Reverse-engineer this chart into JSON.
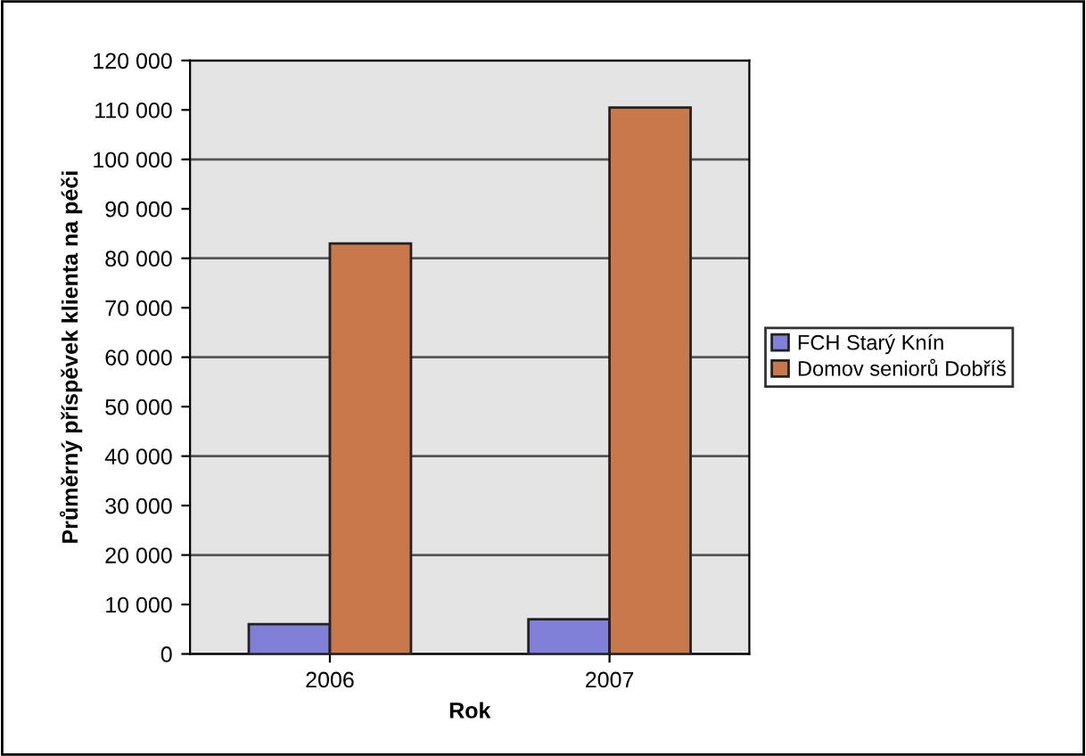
{
  "chart_data": {
    "type": "bar",
    "xlabel": "Rok",
    "ylabel": "Průměrný příspěvek klienta na péči",
    "categories": [
      "2006",
      "2007"
    ],
    "series": [
      {
        "name": "FCH Starý Knín",
        "color": "#8080d8",
        "values": [
          6000,
          7000
        ]
      },
      {
        "name": "Domov seniorů Dobříš",
        "color": "#c8784a",
        "values": [
          83000,
          110500
        ]
      }
    ],
    "ylim": [
      0,
      120000
    ],
    "yticks": [
      {
        "value": 0,
        "label": "0"
      },
      {
        "value": 10000,
        "label": "10 000"
      },
      {
        "value": 20000,
        "label": "20 000"
      },
      {
        "value": 30000,
        "label": "30 000"
      },
      {
        "value": 40000,
        "label": "40 000"
      },
      {
        "value": 50000,
        "label": "50 000"
      },
      {
        "value": 60000,
        "label": "60 000"
      },
      {
        "value": 70000,
        "label": "70 000"
      },
      {
        "value": 80000,
        "label": "80 000"
      },
      {
        "value": 90000,
        "label": "90 000"
      },
      {
        "value": 100000,
        "label": "100 000"
      },
      {
        "value": 110000,
        "label": "110 000"
      },
      {
        "value": 120000,
        "label": "120 000"
      }
    ],
    "grid": "y",
    "legend": "right"
  }
}
